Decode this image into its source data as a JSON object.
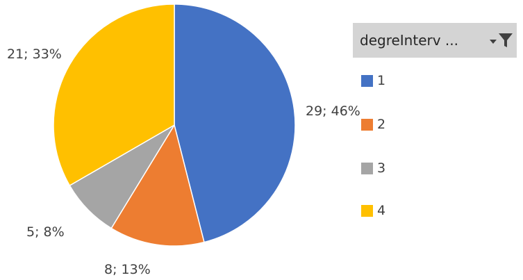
{
  "chart_data": {
    "type": "pie",
    "legend_title": "degreInterv ...",
    "legend_placement": "right",
    "categories": [
      "1",
      "2",
      "3",
      "4"
    ],
    "values": [
      29,
      8,
      5,
      21
    ],
    "percent_labels": [
      "29; 46%",
      "8; 13%",
      "5; 8%",
      "21; 33%"
    ],
    "colors": [
      "#4472c4",
      "#ed7d31",
      "#a5a5a5",
      "#ffc000"
    ]
  },
  "icons": {
    "dropdown": "chevron-down-icon",
    "filter": "filter-icon"
  }
}
